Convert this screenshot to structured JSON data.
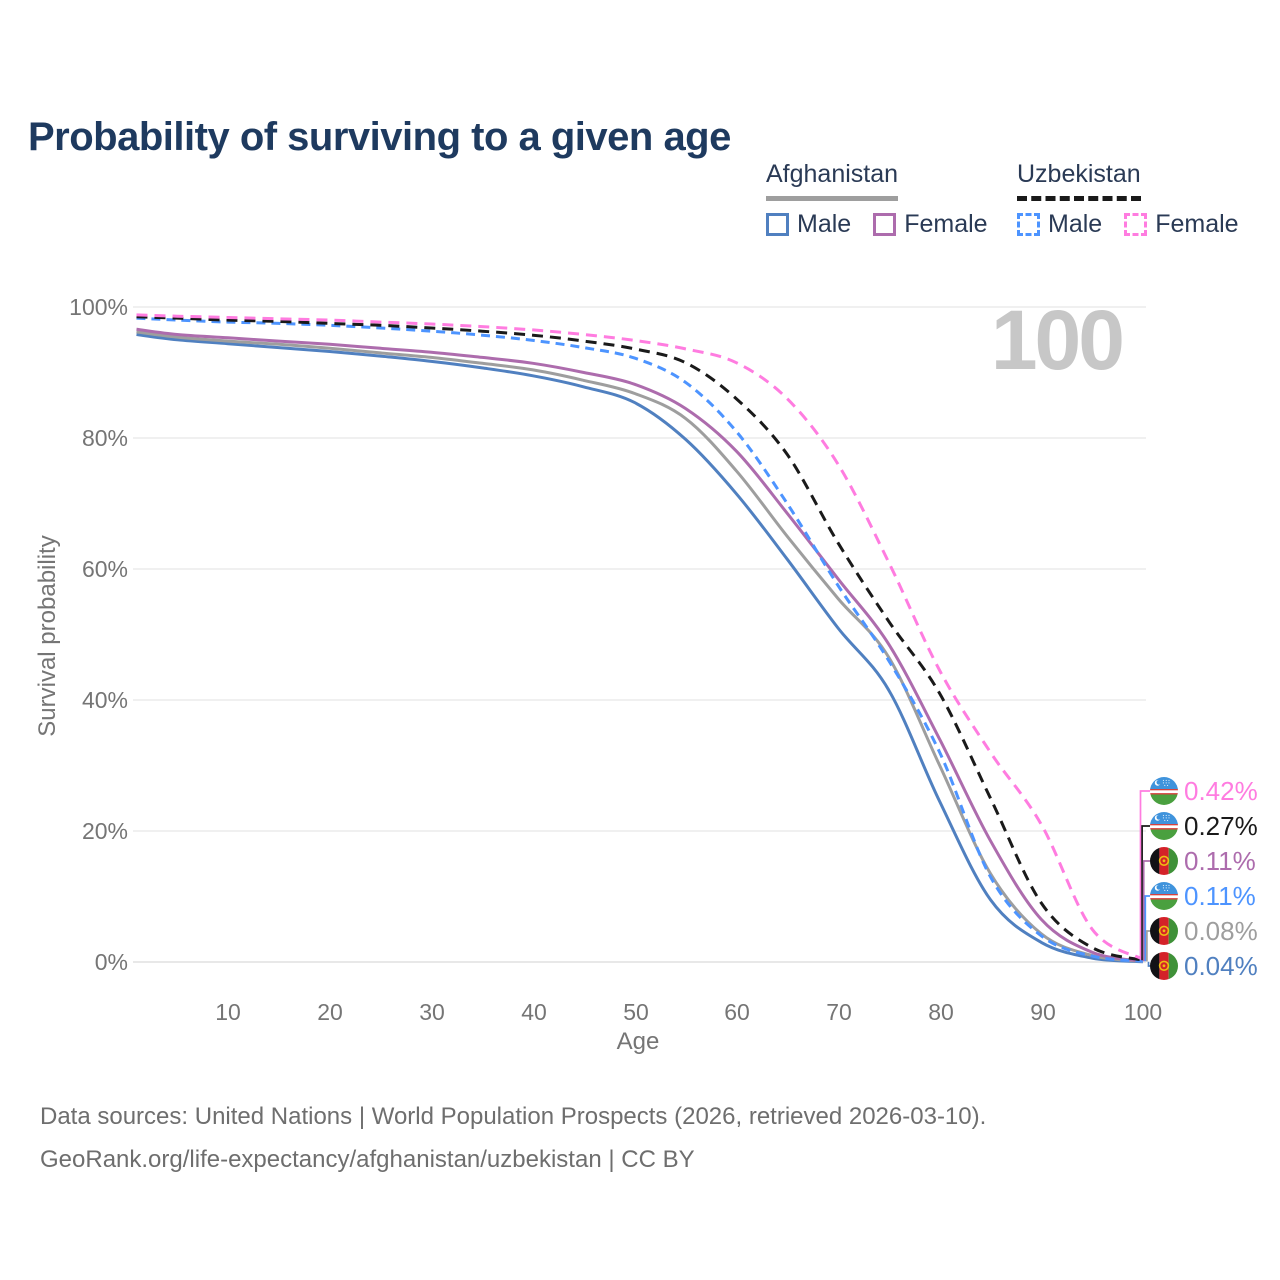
{
  "title": "Probability of surviving to a given age",
  "watermark_label": "100",
  "colors": {
    "afg_male": "#5080c0",
    "afg_female": "#ad6cad",
    "afg_both": "#9e9e9e",
    "uzb_male": "#4d94ff",
    "uzb_female": "#ff7ce0",
    "uzb_both": "#1a1a1a",
    "grid": "#e7e7e7",
    "zero_line": "#d9d9d9",
    "axis_text": "#757575",
    "title_text": "#1e3a5f",
    "watermark": "#c7c7c7"
  },
  "legend": {
    "afghanistan": {
      "label": "Afghanistan",
      "male_label": "Male",
      "female_label": "Female"
    },
    "uzbekistan": {
      "label": "Uzbekistan",
      "male_label": "Male",
      "female_label": "Female"
    }
  },
  "chart_data": {
    "type": "line",
    "xlabel": "Age",
    "ylabel": "Survival probability",
    "xlim": [
      0,
      100
    ],
    "ylim": [
      0,
      100
    ],
    "grid": true,
    "legend_position": "top-right",
    "x_ticks": [
      10,
      20,
      30,
      40,
      50,
      60,
      70,
      80,
      90,
      100
    ],
    "y_tick_labels": [
      "0%",
      "20%",
      "40%",
      "60%",
      "80%",
      "100%"
    ],
    "ages": [
      1,
      5,
      10,
      15,
      20,
      25,
      30,
      35,
      40,
      45,
      50,
      55,
      60,
      65,
      70,
      75,
      80,
      85,
      90,
      95,
      100
    ],
    "series": [
      {
        "name": "Afghanistan Male",
        "country": "Afghanistan",
        "sex": "Male",
        "color_key": "afg_male",
        "dashed": false,
        "values": [
          95.8,
          95.0,
          94.4,
          93.8,
          93.2,
          92.5,
          91.7,
          90.7,
          89.5,
          87.8,
          85.4,
          79.8,
          71.5,
          61.5,
          51.0,
          41.5,
          24.5,
          9.5,
          3.0,
          0.6,
          0.04
        ]
      },
      {
        "name": "Afghanistan Both sexes",
        "country": "Afghanistan",
        "sex": "Both sexes",
        "color_key": "afg_both",
        "dashed": false,
        "values": [
          96.2,
          95.4,
          94.8,
          94.3,
          93.7,
          93.0,
          92.3,
          91.4,
          90.4,
          88.8,
          86.8,
          83.0,
          75.0,
          65.0,
          55.5,
          46.5,
          30.0,
          13.5,
          4.3,
          1.0,
          0.08
        ]
      },
      {
        "name": "Afghanistan Female",
        "country": "Afghanistan",
        "sex": "Female",
        "color_key": "afg_female",
        "dashed": false,
        "values": [
          96.6,
          95.8,
          95.3,
          94.8,
          94.3,
          93.7,
          93.1,
          92.3,
          91.4,
          90.0,
          88.2,
          84.5,
          78.0,
          68.5,
          58.5,
          48.5,
          34.0,
          18.5,
          6.5,
          1.5,
          0.11
        ]
      },
      {
        "name": "Uzbekistan Male",
        "country": "Uzbekistan",
        "sex": "Male",
        "color_key": "uzb_male",
        "dashed": true,
        "values": [
          98.3,
          98.0,
          97.7,
          97.5,
          97.2,
          96.8,
          96.3,
          95.7,
          94.9,
          93.8,
          92.2,
          88.5,
          81.0,
          70.0,
          57.5,
          46.0,
          32.0,
          13.0,
          4.0,
          0.9,
          0.11
        ]
      },
      {
        "name": "Uzbekistan Both sexes",
        "country": "Uzbekistan",
        "sex": "Both sexes",
        "color_key": "uzb_both",
        "dashed": true,
        "values": [
          98.5,
          98.3,
          98.0,
          97.8,
          97.5,
          97.2,
          96.8,
          96.3,
          95.7,
          94.8,
          93.6,
          91.5,
          86.0,
          77.5,
          64.0,
          52.0,
          41.0,
          25.0,
          9.0,
          2.2,
          0.27
        ]
      },
      {
        "name": "Uzbekistan Female",
        "country": "Uzbekistan",
        "sex": "Female",
        "color_key": "uzb_female",
        "dashed": true,
        "values": [
          98.8,
          98.6,
          98.4,
          98.2,
          98.0,
          97.7,
          97.4,
          97.0,
          96.5,
          95.8,
          94.9,
          93.6,
          91.5,
          86.0,
          76.0,
          61.0,
          44.5,
          32.0,
          21.0,
          5.0,
          0.42
        ]
      }
    ]
  },
  "end_labels": [
    {
      "value": "0.42%",
      "flag": "uzbekistan",
      "color_key": "uzb_female",
      "series_index": 5
    },
    {
      "value": "0.27%",
      "flag": "uzbekistan",
      "color_key": "uzb_both",
      "series_index": 4
    },
    {
      "value": "0.11%",
      "flag": "afghanistan",
      "color_key": "afg_female",
      "series_index": 2
    },
    {
      "value": "0.11%",
      "flag": "uzbekistan",
      "color_key": "uzb_male",
      "series_index": 3
    },
    {
      "value": "0.08%",
      "flag": "afghanistan",
      "color_key": "afg_both",
      "series_index": 1
    },
    {
      "value": "0.04%",
      "flag": "afghanistan",
      "color_key": "afg_male",
      "series_index": 0
    }
  ],
  "footer": {
    "line1": "Data sources: United Nations | World Population Prospects (2026, retrieved 2026-03-10).",
    "line2": "GeoRank.org/life-expectancy/afghanistan/uzbekistan | CC BY"
  }
}
